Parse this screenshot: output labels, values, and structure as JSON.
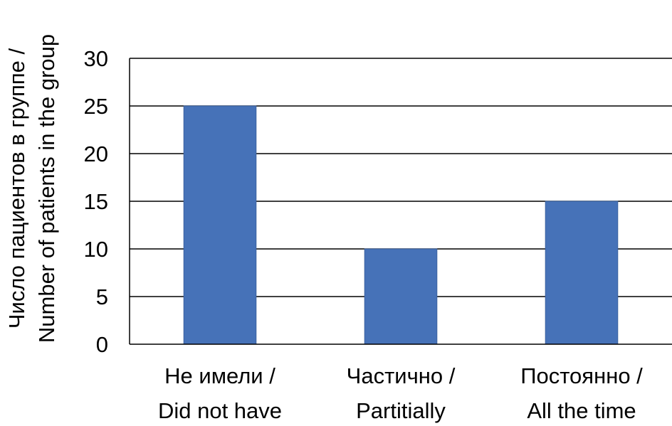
{
  "colors": {
    "bar": "#4672B8",
    "grid": "#000000",
    "text": "#000000",
    "background": "#ffffff"
  },
  "chart_data": {
    "type": "bar",
    "categories": [
      [
        "Не имели /",
        "Did not have"
      ],
      [
        "Частично /",
        "Partitially"
      ],
      [
        "Постоянно /",
        "All the time"
      ]
    ],
    "values": [
      25,
      10,
      15
    ],
    "title": "",
    "xlabel": "",
    "ylabel": [
      "Число пациентов в группе /",
      "Number of patients in the group"
    ],
    "ylim": [
      0,
      30
    ],
    "yticks": [
      "0",
      "5",
      "10",
      "15",
      "20",
      "25",
      "30"
    ],
    "grid": true,
    "legend": "none"
  }
}
